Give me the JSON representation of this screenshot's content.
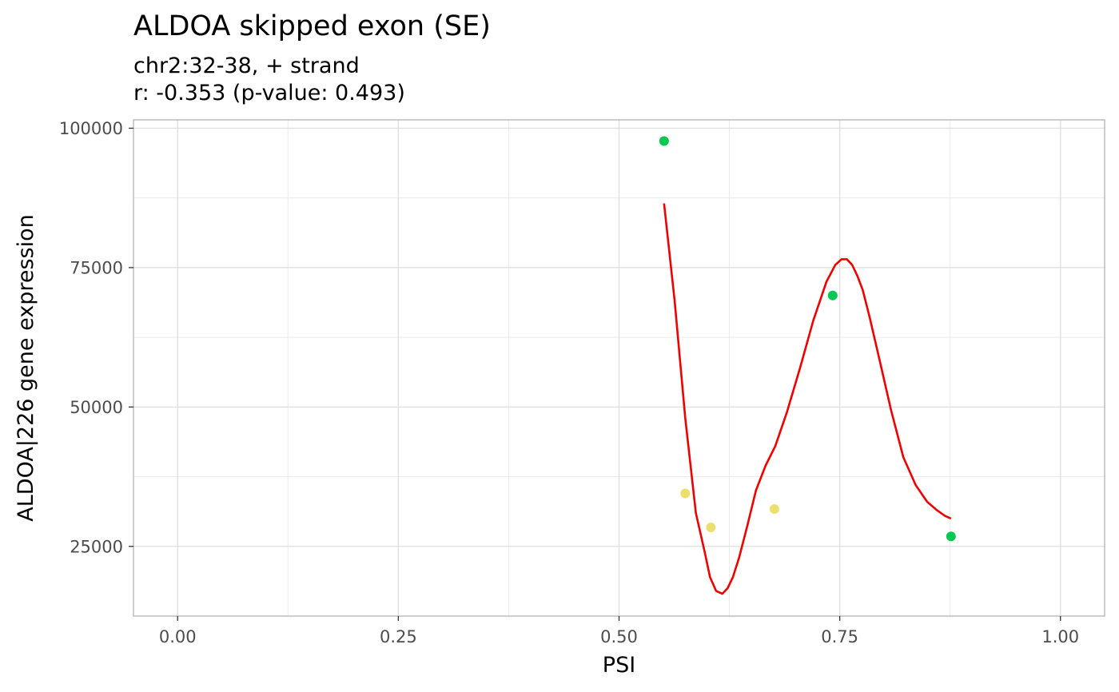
{
  "chart_data": {
    "type": "scatter",
    "title": "ALDOA skipped exon (SE)",
    "subtitle_lines": [
      "chr2:32-38, + strand",
      "r: -0.353 (p-value: 0.493)"
    ],
    "xlabel": "PSI",
    "ylabel": "ALDOA|226 gene expression",
    "xlim": [
      -0.05,
      1.05
    ],
    "ylim": [
      12500,
      101500
    ],
    "x_ticks": [
      0,
      0.25,
      0.5,
      0.75,
      1
    ],
    "x_tick_labels": [
      "0.00",
      "0.25",
      "0.50",
      "0.75",
      "1.00"
    ],
    "y_ticks": [
      25000,
      50000,
      75000,
      100000
    ],
    "y_tick_labels": [
      "25000",
      "50000",
      "75000",
      "100000"
    ],
    "grid": true,
    "legend": "none",
    "points": [
      {
        "x": 0.551,
        "y": 97700,
        "color": "#00c853"
      },
      {
        "x": 0.575,
        "y": 34500,
        "color": "#ebe06e"
      },
      {
        "x": 0.604,
        "y": 28400,
        "color": "#ebe06e"
      },
      {
        "x": 0.676,
        "y": 31700,
        "color": "#ebe06e"
      },
      {
        "x": 0.742,
        "y": 70000,
        "color": "#00c853"
      },
      {
        "x": 0.876,
        "y": 26800,
        "color": "#00c853"
      }
    ],
    "trend_line": {
      "color": "#ee0000",
      "x": [
        0.551,
        0.563,
        0.575,
        0.587,
        0.597,
        0.603,
        0.61,
        0.617,
        0.623,
        0.629,
        0.636,
        0.645,
        0.655,
        0.666,
        0.677,
        0.69,
        0.705,
        0.72,
        0.735,
        0.745,
        0.752,
        0.758,
        0.764,
        0.77,
        0.776,
        0.784,
        0.795,
        0.808,
        0.822,
        0.836,
        0.849,
        0.86,
        0.869,
        0.876
      ],
      "y": [
        86500,
        69000,
        48000,
        31000,
        24000,
        19500,
        17000,
        16500,
        17500,
        19500,
        23000,
        28500,
        35000,
        39500,
        43000,
        49000,
        57000,
        65500,
        72500,
        75500,
        76500,
        76500,
        75500,
        73500,
        71000,
        66000,
        58500,
        49500,
        41000,
        36000,
        33000,
        31500,
        30500,
        30000
      ]
    }
  }
}
